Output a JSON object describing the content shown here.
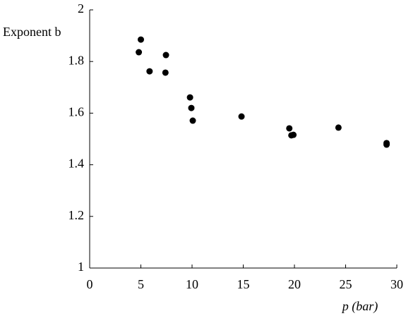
{
  "chart_data": {
    "type": "scatter",
    "ylabel": "Exponent b",
    "xlabel": "p (bar)",
    "x": [
      5.0,
      4.8,
      7.45,
      5.85,
      7.4,
      9.8,
      9.93,
      10.07,
      14.83,
      19.5,
      19.7,
      19.9,
      24.3,
      29.0,
      29.0
    ],
    "values": [
      1.885,
      1.836,
      1.825,
      1.762,
      1.757,
      1.661,
      1.62,
      1.571,
      1.587,
      1.541,
      1.514,
      1.516,
      1.544,
      1.484,
      1.478
    ],
    "color": "#000000",
    "xlim": [
      0,
      30
    ],
    "xticks": [
      0,
      5,
      10,
      15,
      20,
      25,
      30
    ],
    "ylim": [
      1,
      2
    ],
    "yticks": [
      1,
      1.2,
      1.4,
      1.6,
      1.8,
      2
    ],
    "grid": false
  }
}
